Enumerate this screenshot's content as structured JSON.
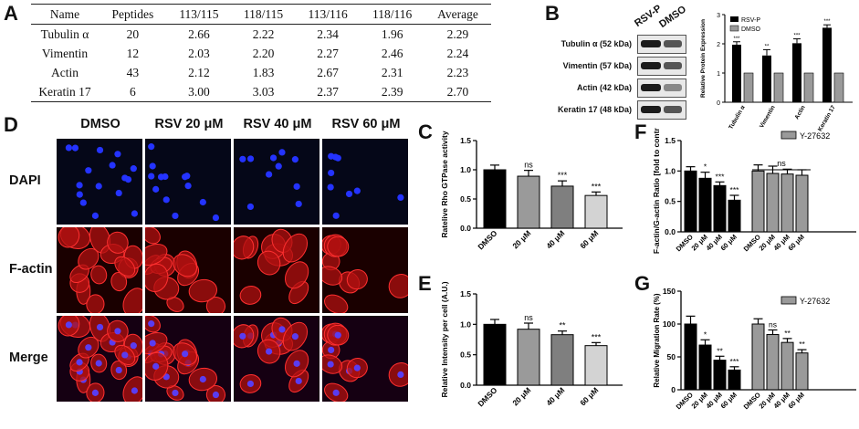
{
  "panel_labels": {
    "A": "A",
    "B": "B",
    "C": "C",
    "D": "D",
    "E": "E",
    "F": "F",
    "G": "G"
  },
  "tableA": {
    "headers": [
      "Name",
      "Peptides",
      "113/115",
      "118/115",
      "113/116",
      "118/116",
      "Average"
    ],
    "rows": [
      [
        "Tubulin α",
        "20",
        "2.66",
        "2.22",
        "2.34",
        "1.96",
        "2.29"
      ],
      [
        "Vimentin",
        "12",
        "2.03",
        "2.20",
        "2.27",
        "2.46",
        "2.24"
      ],
      [
        "Actin",
        "43",
        "2.12",
        "1.83",
        "2.67",
        "2.31",
        "2.23"
      ],
      [
        "Keratin 17",
        "6",
        "3.00",
        "3.03",
        "2.37",
        "2.39",
        "2.70"
      ]
    ]
  },
  "blot": {
    "col_labels": [
      "RSV-P",
      "DMSO"
    ],
    "rows": [
      "Tubulin α (52 kDa)",
      "Vimentin (57 kDa)",
      "Actin (42 kDa)",
      "Keratin 17 (48 kDa)"
    ]
  },
  "microscopy": {
    "col_labels": [
      "DMSO",
      "RSV 20 μM",
      "RSV 40 μM",
      "RSV 60 μM"
    ],
    "row_labels": [
      "DAPI",
      "F-actin",
      "Merge"
    ]
  },
  "colors": {
    "black_bar": "#000000",
    "grey_bar": "#9a9a9a",
    "mid_grey": "#7f7f7f",
    "light_grey": "#d3d3d3",
    "red": "#d01010",
    "blue": "#1c2de0"
  },
  "chart_data": [
    {
      "id": "B",
      "type": "bar",
      "categories": [
        "Tubulin α",
        "Vimentin",
        "Actin",
        "Keratin 17"
      ],
      "series": [
        {
          "name": "RSV-P",
          "values": [
            1.97,
            1.6,
            2.02,
            2.55
          ],
          "errors": [
            0.1,
            0.2,
            0.15,
            0.1
          ],
          "sig": [
            "***",
            "**",
            "***",
            "***"
          ]
        },
        {
          "name": "DMSO",
          "values": [
            1.0,
            1.0,
            1.0,
            1.0
          ]
        }
      ],
      "ylabel": "Relative Protein Expression",
      "ylim": [
        0,
        3
      ],
      "yticks": [
        "0",
        "1",
        "2",
        "3"
      ],
      "legend": "top-left"
    },
    {
      "id": "C",
      "type": "bar",
      "categories": [
        "DMSO",
        "20 μM",
        "40 μM",
        "60 μM"
      ],
      "values": [
        1.0,
        0.89,
        0.72,
        0.56
      ],
      "errors": [
        0.08,
        0.1,
        0.09,
        0.06
      ],
      "sig": [
        "",
        "ns",
        "***",
        "***"
      ],
      "ylabel": "Ratelive Rho GTPase activity",
      "ylim": [
        0,
        1.5
      ],
      "yticks": [
        "0.0",
        "0.5",
        "1.0",
        "1.5"
      ]
    },
    {
      "id": "E",
      "type": "bar",
      "categories": [
        "DMSO",
        "20 μM",
        "40 μM",
        "60 μM"
      ],
      "values": [
        1.0,
        0.92,
        0.83,
        0.65
      ],
      "errors": [
        0.08,
        0.1,
        0.06,
        0.05
      ],
      "sig": [
        "",
        "ns",
        "**",
        "***"
      ],
      "ylabel": "Relative Intensity per cell (A.U.)",
      "ylim": [
        0,
        1.5
      ],
      "yticks": [
        "0.0",
        "0.5",
        "1.0",
        "1.5"
      ]
    },
    {
      "id": "F",
      "type": "bar",
      "categories": [
        "DMSO",
        "20 μM",
        "40 μM",
        "60 μM",
        "DMSO",
        "20 μM",
        "40 μM",
        "60 μM"
      ],
      "values": [
        1.0,
        0.88,
        0.76,
        0.52,
        1.0,
        0.96,
        0.95,
        0.93
      ],
      "errors": [
        0.07,
        0.1,
        0.06,
        0.08,
        0.1,
        0.12,
        0.08,
        0.09
      ],
      "sig": [
        "",
        "*",
        "***",
        "***",
        "",
        "",
        "",
        ""
      ],
      "group_note": "ns",
      "legend_series": "Y-27632",
      "ylabel": "F-actin/G-actin Ratio [fold to control]",
      "ylim": [
        0,
        1.5
      ],
      "yticks": [
        "0.0",
        "0.5",
        "1.0",
        "1.5"
      ]
    },
    {
      "id": "G",
      "type": "bar",
      "categories": [
        "DMSO",
        "20 μM",
        "40 μM",
        "60 μM",
        "DMSO",
        "20 μM",
        "40 μM",
        "60 μM"
      ],
      "values": [
        100,
        68,
        45,
        30,
        100,
        84,
        72,
        56
      ],
      "errors": [
        12,
        8,
        6,
        5,
        8,
        7,
        6,
        5
      ],
      "sig": [
        "",
        "*",
        "**",
        "***",
        "",
        "ns",
        "**",
        "**"
      ],
      "legend_series": "Y-27632",
      "ylabel": "Relative Migration Rate (%)",
      "ylim": [
        0,
        150
      ],
      "yticks": [
        "0",
        "50",
        "100",
        "150"
      ]
    }
  ]
}
